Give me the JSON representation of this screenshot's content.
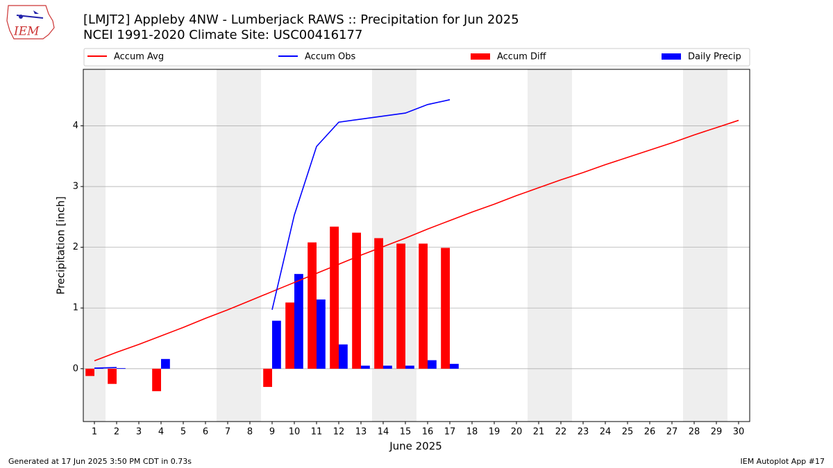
{
  "logo_text": "IEM",
  "chart_data": {
    "type": "bar",
    "title": "[LMJT2] Appleby 4NW - Lumberjack RAWS :: Precipitation for Jun 2025",
    "subtitle": "NCEI 1991-2020 Climate Site: USC00416177",
    "xlabel": "June 2025",
    "ylabel": "Precipitation [inch]",
    "x": [
      1,
      2,
      3,
      4,
      5,
      6,
      7,
      8,
      9,
      10,
      11,
      12,
      13,
      14,
      15,
      16,
      17,
      18,
      19,
      20,
      21,
      22,
      23,
      24,
      25,
      26,
      27,
      28,
      29,
      30
    ],
    "xlim": [
      0.5,
      30.5
    ],
    "xticks": [
      1,
      2,
      3,
      4,
      5,
      6,
      7,
      8,
      9,
      10,
      11,
      12,
      13,
      14,
      15,
      16,
      17,
      18,
      19,
      20,
      21,
      22,
      23,
      24,
      25,
      26,
      27,
      28,
      29,
      30
    ],
    "ylim": [
      -0.87,
      4.93
    ],
    "yticks": [
      0,
      1,
      2,
      3,
      4
    ],
    "grid": true,
    "shaded_days": [
      1,
      7,
      8,
      14,
      15,
      21,
      22,
      28,
      29
    ],
    "shade_color": "#eeeeee",
    "series": [
      {
        "name": "Accum Avg",
        "type": "line",
        "color": "#ff0000",
        "values": [
          0.13,
          0.27,
          0.4,
          0.54,
          0.68,
          0.83,
          0.97,
          1.12,
          1.27,
          1.42,
          1.57,
          1.72,
          1.87,
          2.01,
          2.15,
          2.3,
          2.44,
          2.58,
          2.71,
          2.85,
          2.98,
          3.11,
          3.23,
          3.36,
          3.48,
          3.6,
          3.72,
          3.85,
          3.97,
          4.09
        ]
      },
      {
        "name": "Accum Obs",
        "type": "line",
        "color": "#0000ff",
        "values": [
          0.01,
          0.02,
          null,
          null,
          null,
          null,
          null,
          null,
          0.97,
          2.53,
          3.66,
          4.06,
          4.11,
          4.16,
          4.21,
          4.35,
          4.43,
          null,
          null,
          null,
          null,
          null,
          null,
          null,
          null,
          null,
          null,
          null,
          null,
          null
        ]
      },
      {
        "name": "Accum Diff",
        "type": "bar",
        "color": "#ff0000",
        "values": [
          -0.12,
          -0.25,
          null,
          -0.37,
          null,
          null,
          null,
          null,
          -0.3,
          1.09,
          2.08,
          2.34,
          2.24,
          2.15,
          2.06,
          2.06,
          1.99,
          null,
          null,
          null,
          null,
          null,
          null,
          null,
          null,
          null,
          null,
          null,
          null,
          null
        ]
      },
      {
        "name": "Daily Precip",
        "type": "bar",
        "color": "#0000ff",
        "values": [
          0.01,
          0.01,
          null,
          0.16,
          null,
          null,
          null,
          null,
          0.79,
          1.56,
          1.14,
          0.4,
          0.05,
          0.05,
          0.05,
          0.14,
          0.08,
          null,
          null,
          null,
          null,
          null,
          null,
          null,
          null,
          null,
          null,
          null,
          null,
          null
        ]
      }
    ]
  },
  "footer_left": "Generated at 17 Jun 2025 3:50 PM CDT in 0.73s",
  "footer_right": "IEM Autoplot App #17"
}
